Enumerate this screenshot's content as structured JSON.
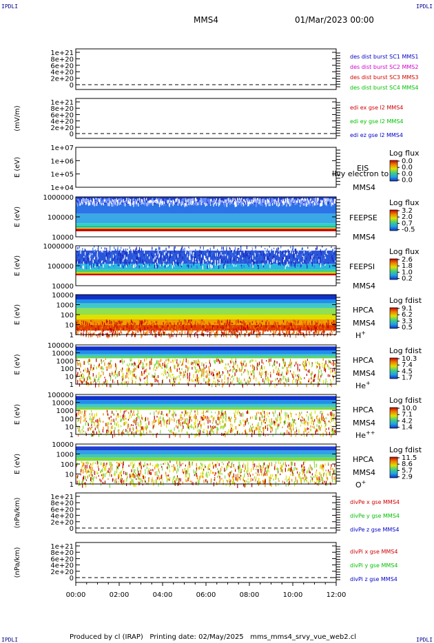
{
  "header": {
    "corner_tl": "IPDLI",
    "corner_tr": "IPDLI",
    "corner_bl": "IPDLI",
    "corner_br": "IPDLI",
    "spacecraft": "MMS4",
    "date": "01/Mar/2023 00:00"
  },
  "footer": {
    "produced_by": "Produced by cl (IRAP)",
    "printing_date": "Printing date: 02/May/2025",
    "file": "mms_mms4_srvy_vue_web2.cl"
  },
  "chart_data": [
    {
      "type": "line",
      "yticks": [
        "1e+21",
        "8e+20",
        "6e+20",
        "4e+20",
        "2e+20",
        "0"
      ],
      "ylabel": "",
      "legend": [
        {
          "name": "des dist burst SC1 MMS1",
          "color": "#0000c8"
        },
        {
          "name": "des dist burst SC2 MMS2",
          "color": "#d000d0"
        },
        {
          "name": "des dist burst SC3 MMS3",
          "color": "#d00000"
        },
        {
          "name": "des dist burst SC4 MMS4",
          "color": "#00c000"
        }
      ]
    },
    {
      "type": "line",
      "yticks": [
        "1e+21",
        "8e+20",
        "6e+20",
        "4e+20",
        "2e+20",
        "0"
      ],
      "ylabel": "(mV/m)",
      "legend": [
        {
          "name": "edi ex gse l2 MMS4",
          "color": "#d00000"
        },
        {
          "name": "edi ey gse l2 MMS4",
          "color": "#00c000"
        },
        {
          "name": "edi ez gse l2 MMS4",
          "color": "#0000c8"
        }
      ]
    },
    {
      "type": "heatmap",
      "yticks": [
        "1e+07",
        "1e+06",
        "1e+05",
        "1e+04"
      ],
      "ylabel": "E (eV)",
      "label1": "EIS",
      "label2": "MMS4",
      "overlay": "Ilvy electron to",
      "cbar_title": "Log flux",
      "cbar_ticks": [
        "0.0",
        "0.0",
        "0.0",
        "0.0"
      ],
      "spectrogram": "none"
    },
    {
      "type": "heatmap",
      "yticks": [
        "1000000",
        "100000",
        "10000"
      ],
      "ylabel": "E (eV)",
      "label1": "FEEPSE",
      "label2": "MMS4",
      "cbar_title": "Log flux",
      "cbar_ticks": [
        "3.2",
        "2.0",
        "0.7",
        "-0.5"
      ],
      "spectrogram": "feeps_e"
    },
    {
      "type": "heatmap",
      "yticks": [
        "1000000",
        "100000",
        "10000"
      ],
      "ylabel": "E (eV)",
      "label1": "FEEPSI",
      "label2": "MMS4",
      "cbar_title": "Log flux",
      "cbar_ticks": [
        "2.6",
        "1.8",
        "1.0",
        "0.2"
      ],
      "spectrogram": "feeps_i"
    },
    {
      "type": "heatmap",
      "yticks": [
        "10000",
        "1000",
        "100",
        "10",
        "1"
      ],
      "ylabel": "E (eV)",
      "label1": "HPCA",
      "label2": "MMS4",
      "species_base": "H",
      "species_sup": "+",
      "cbar_title": "Log fdist",
      "cbar_ticks": [
        "9.1",
        "6.2",
        "3.3",
        "0.5"
      ],
      "spectrogram": "hplus"
    },
    {
      "type": "heatmap",
      "yticks": [
        "100000",
        "10000",
        "1000",
        "100",
        "10",
        "1"
      ],
      "ylabel": "E (eV)",
      "label1": "HPCA",
      "label2": "MMS4",
      "species_base": "He",
      "species_sup": "+",
      "cbar_title": "Log fdist",
      "cbar_ticks": [
        "10.3",
        "7.4",
        "4.5",
        "1.7"
      ],
      "spectrogram": "heplus"
    },
    {
      "type": "heatmap",
      "yticks": [
        "100000",
        "10000",
        "1000",
        "100",
        "10",
        "1"
      ],
      "ylabel": "E (eV)",
      "label1": "HPCA",
      "label2": "MMS4",
      "species_base": "He",
      "species_sup": "++",
      "cbar_title": "Log fdist",
      "cbar_ticks": [
        "10.0",
        "7.1",
        "4.2",
        "1.4"
      ],
      "spectrogram": "heplusplus"
    },
    {
      "type": "heatmap",
      "yticks": [
        "10000",
        "1000",
        "100",
        "10",
        "1"
      ],
      "ylabel": "E (eV)",
      "label1": "HPCA",
      "label2": "MMS4",
      "species_base": "O",
      "species_sup": "+",
      "cbar_title": "Log fdist",
      "cbar_ticks": [
        "11.5",
        "8.6",
        "5.7",
        "2.9"
      ],
      "spectrogram": "oplus"
    },
    {
      "type": "line",
      "yticks": [
        "1e+21",
        "8e+20",
        "6e+20",
        "4e+20",
        "2e+20",
        "0"
      ],
      "ylabel": "(nPa/km)",
      "legend": [
        {
          "name": "divPe x gse MMS4",
          "color": "#d00000"
        },
        {
          "name": "divPe y gse MMS4",
          "color": "#00c000"
        },
        {
          "name": "divPe z gse MMS4",
          "color": "#0000c8"
        }
      ]
    },
    {
      "type": "line",
      "yticks": [
        "1e+21",
        "8e+20",
        "6e+20",
        "4e+20",
        "2e+20",
        "0"
      ],
      "ylabel": "(nPa/km)",
      "legend": [
        {
          "name": "divPi x gse MMS4",
          "color": "#d00000"
        },
        {
          "name": "divPi y gse MMS4",
          "color": "#00c000"
        },
        {
          "name": "divPi z gse MMS4",
          "color": "#0000c8"
        }
      ]
    }
  ],
  "time_axis": {
    "ticks": [
      "00:00",
      "02:00",
      "04:00",
      "06:00",
      "08:00",
      "10:00",
      "12:00"
    ]
  }
}
